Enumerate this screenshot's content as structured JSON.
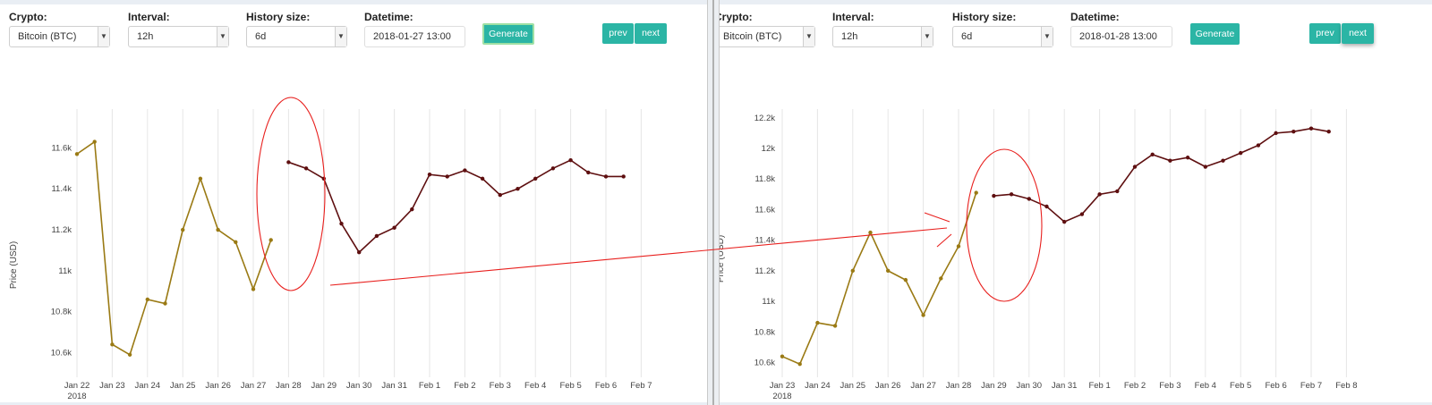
{
  "controls": {
    "crypto_label": "Crypto:",
    "interval_label": "Interval:",
    "history_label": "History size:",
    "datetime_label": "Datetime:",
    "generate": "Generate",
    "prev": "prev",
    "next": "next"
  },
  "panels": [
    {
      "crypto": "Bitcoin (BTC)",
      "interval": "12h",
      "history": "6d",
      "datetime": "2018-01-27 13:00"
    },
    {
      "crypto": "Bitcoin (BTC)",
      "interval": "12h",
      "history": "6d",
      "datetime": "2018-01-28 13:00"
    }
  ],
  "colors": {
    "history_series": "#9a7a14",
    "prediction_series": "#5e0f10",
    "annotation": "#e8201e",
    "button": "#2bb5a5"
  },
  "chart_data": [
    {
      "type": "line",
      "ylabel": "Price (USD)",
      "ylim": [
        10530,
        11700
      ],
      "yticks": [
        10600,
        10800,
        11000,
        11200,
        11400,
        11600
      ],
      "ytick_labels": [
        "10.6k",
        "10.8k",
        "11k",
        "11.2k",
        "11.4k",
        "11.6k"
      ],
      "x_start": "2018-01-22",
      "xticks": [
        "Jan 22",
        "Jan 23",
        "Jan 24",
        "Jan 25",
        "Jan 26",
        "Jan 27",
        "Jan 28",
        "Jan 29",
        "Jan 30",
        "Jan 31",
        "Feb 1",
        "Feb 2",
        "Feb 3",
        "Feb 4",
        "Feb 5",
        "Feb 6",
        "Feb 7"
      ],
      "first_tick_year": "2018",
      "grid": true,
      "series": [
        {
          "color": "#9a7a14",
          "x": [
            "2018-01-22 00:00",
            "2018-01-22 12:00",
            "2018-01-23 00:00",
            "2018-01-23 12:00",
            "2018-01-24 00:00",
            "2018-01-24 12:00",
            "2018-01-25 00:00",
            "2018-01-25 12:00",
            "2018-01-26 00:00",
            "2018-01-26 12:00",
            "2018-01-27 00:00",
            "2018-01-27 12:00"
          ],
          "y": [
            11570,
            11630,
            10640,
            10590,
            10860,
            10840,
            11200,
            11450,
            11200,
            11140,
            10910,
            11150
          ]
        },
        {
          "color": "#5e0f10",
          "x": [
            "2018-01-28 00:00",
            "2018-01-28 12:00",
            "2018-01-29 00:00",
            "2018-01-29 12:00",
            "2018-01-30 00:00",
            "2018-01-30 12:00",
            "2018-01-31 00:00",
            "2018-01-31 12:00",
            "2018-02-01 00:00",
            "2018-02-01 12:00",
            "2018-02-02 00:00",
            "2018-02-02 12:00",
            "2018-02-03 00:00",
            "2018-02-03 12:00",
            "2018-02-04 00:00",
            "2018-02-04 12:00",
            "2018-02-05 00:00",
            "2018-02-05 12:00",
            "2018-02-06 00:00",
            "2018-02-06 12:00"
          ],
          "y": [
            11530,
            11500,
            11450,
            11230,
            11090,
            11170,
            11210,
            11300,
            11470,
            11460,
            11490,
            11450,
            11370,
            11400,
            11450,
            11500,
            11540,
            11480,
            11460,
            11460
          ]
        }
      ]
    },
    {
      "type": "line",
      "ylabel": "Price (USD)",
      "ylim": [
        10530,
        12260
      ],
      "yticks": [
        10600,
        10800,
        11000,
        11200,
        11400,
        11600,
        11800,
        12000,
        12200
      ],
      "ytick_labels": [
        "10.6k",
        "10.8k",
        "11k",
        "11.2k",
        "11.4k",
        "11.6k",
        "11.8k",
        "12k",
        "12.2k"
      ],
      "x_start": "2018-01-23",
      "xticks": [
        "Jan 23",
        "Jan 24",
        "Jan 25",
        "Jan 26",
        "Jan 27",
        "Jan 28",
        "Jan 29",
        "Jan 30",
        "Jan 31",
        "Feb 1",
        "Feb 2",
        "Feb 3",
        "Feb 4",
        "Feb 5",
        "Feb 6",
        "Feb 7",
        "Feb 8"
      ],
      "first_tick_year": "2018",
      "grid": true,
      "series": [
        {
          "color": "#9a7a14",
          "x": [
            "2018-01-23 00:00",
            "2018-01-23 12:00",
            "2018-01-24 00:00",
            "2018-01-24 12:00",
            "2018-01-25 00:00",
            "2018-01-25 12:00",
            "2018-01-26 00:00",
            "2018-01-26 12:00",
            "2018-01-27 00:00",
            "2018-01-27 12:00",
            "2018-01-28 00:00",
            "2018-01-28 12:00"
          ],
          "y": [
            10640,
            10590,
            10860,
            10840,
            11200,
            11450,
            11200,
            11140,
            10910,
            11150,
            11360,
            11710
          ]
        },
        {
          "color": "#5e0f10",
          "x": [
            "2018-01-29 00:00",
            "2018-01-29 12:00",
            "2018-01-30 00:00",
            "2018-01-30 12:00",
            "2018-01-31 00:00",
            "2018-01-31 12:00",
            "2018-02-01 00:00",
            "2018-02-01 12:00",
            "2018-02-02 00:00",
            "2018-02-02 12:00",
            "2018-02-03 00:00",
            "2018-02-03 12:00",
            "2018-02-04 00:00",
            "2018-02-04 12:00",
            "2018-02-05 00:00",
            "2018-02-05 12:00",
            "2018-02-06 00:00",
            "2018-02-06 12:00",
            "2018-02-07 00:00",
            "2018-02-07 12:00"
          ],
          "y": [
            11690,
            11700,
            11670,
            11620,
            11520,
            11570,
            11700,
            11720,
            11880,
            11960,
            11920,
            11940,
            11880,
            11920,
            11970,
            12020,
            12100,
            12110,
            12130,
            12110
          ]
        }
      ]
    }
  ]
}
